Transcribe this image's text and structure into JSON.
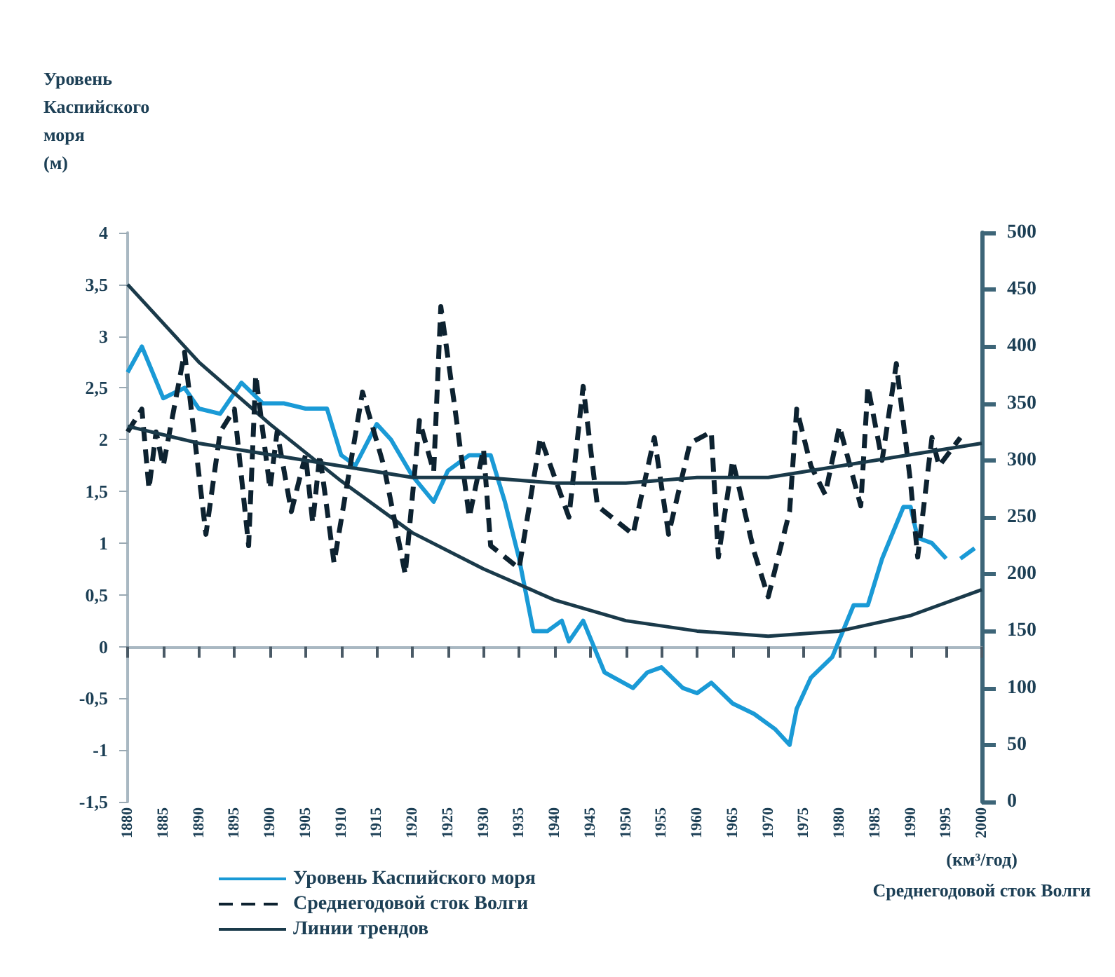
{
  "chart_data": {
    "type": "line",
    "ylabel": "Уровень\nКаспийского\nморя\n(м)",
    "y2label": "(км³/год)\nСреднегодовой сток Волги",
    "xlim": [
      1880,
      2000
    ],
    "xticks": [
      1880,
      1885,
      1890,
      1895,
      1900,
      1905,
      1910,
      1915,
      1920,
      1925,
      1930,
      1935,
      1940,
      1945,
      1950,
      1955,
      1960,
      1965,
      1970,
      1975,
      1980,
      1985,
      1990,
      1995,
      2000
    ],
    "ylim": [
      -1.5,
      4
    ],
    "yticks": [
      {
        "value": -1.5,
        "label": "-1,5"
      },
      -1,
      {
        "value": -0.5,
        "label": "-0,5"
      },
      0,
      {
        "value": 0.5,
        "label": "0,5"
      },
      1,
      {
        "value": 1.5,
        "label": "1,5"
      },
      2,
      {
        "value": 2.5,
        "label": "2,5"
      },
      3,
      {
        "value": 3.5,
        "label": "3,5"
      },
      4
    ],
    "y2lim": [
      0,
      500
    ],
    "y2ticks": [
      0,
      50,
      100,
      150,
      200,
      250,
      300,
      350,
      400,
      450,
      500
    ],
    "legend": "bottom left",
    "marker": "none",
    "series": [
      {
        "name": "Уровень Каспийского моря",
        "color": "#1a9ad6",
        "line_style": "solid",
        "x": [
          1880,
          1882,
          1885,
          1888,
          1890,
          1893,
          1896,
          1899,
          1902,
          1905,
          1908,
          1910,
          1912,
          1915,
          1917,
          1920,
          1923,
          1925,
          1928,
          1931,
          1933,
          1935,
          1937,
          1939,
          1941,
          1942,
          1944,
          1947,
          1951,
          1953,
          1955,
          1958,
          1960,
          1962,
          1965,
          1968,
          1971,
          1973,
          1974,
          1976,
          1979,
          1982,
          1984,
          1986,
          1989,
          1990,
          1991,
          1993,
          1995,
          1996,
          1997,
          1999
        ],
        "values": [
          2.65,
          2.9,
          2.4,
          2.5,
          2.3,
          2.25,
          2.55,
          2.35,
          2.35,
          2.3,
          2.3,
          1.85,
          1.75,
          2.15,
          2,
          1.65,
          1.4,
          1.7,
          1.85,
          1.85,
          1.4,
          0.85,
          0.15,
          0.15,
          0.25,
          0.05,
          0.25,
          -0.25,
          -0.4,
          -0.25,
          -0.2,
          -0.4,
          -0.45,
          -0.35,
          -0.55,
          -0.65,
          -0.8,
          -0.95,
          -0.6,
          -0.3,
          -0.1,
          0.4,
          0.4,
          0.85,
          1.35,
          1.35,
          1.05,
          1,
          0.85,
          null,
          0.85,
          0.95
        ]
      },
      {
        "name": "Среднегодовой сток Волги",
        "color": "#0d2230",
        "line_style": "dashed",
        "axis": "y2",
        "x": [
          1880,
          1882,
          1883,
          1884,
          1885,
          1888,
          1891,
          1893,
          1895,
          1897,
          1898,
          1900,
          1901,
          1903,
          1905,
          1906,
          1907,
          1909,
          1913,
          1916,
          1919,
          1921,
          1923,
          1924,
          1926,
          1928,
          1930,
          1931,
          1935,
          1938,
          1942,
          1944,
          1946,
          1951,
          1954,
          1956,
          1959,
          1962,
          1963,
          1965,
          1968,
          1970,
          1973,
          1974,
          1976,
          1978,
          1980,
          1983,
          1984,
          1986,
          1988,
          1990,
          1991,
          1993,
          1994,
          1997
        ],
        "values": [
          325,
          345,
          275,
          325,
          295,
          395,
          235,
          325,
          345,
          225,
          375,
          275,
          325,
          255,
          305,
          245,
          305,
          210,
          360,
          295,
          200,
          335,
          290,
          435,
          345,
          250,
          310,
          225,
          205,
          320,
          250,
          365,
          260,
          235,
          320,
          235,
          315,
          325,
          215,
          300,
          220,
          180,
          255,
          345,
          295,
          270,
          330,
          260,
          365,
          300,
          385,
          280,
          215,
          320,
          295,
          320
        ]
      },
      {
        "name": "Линии трендов",
        "color": "#1a3a4a",
        "line_style": "solid",
        "x": [
          1880,
          1890,
          1900,
          1910,
          1920,
          1930,
          1940,
          1950,
          1960,
          1970,
          1980,
          1990,
          2000
        ],
        "values": [
          3.5,
          2.75,
          2.15,
          1.6,
          1.1,
          0.75,
          0.45,
          0.25,
          0.15,
          0.1,
          0.15,
          0.3,
          0.55
        ]
      },
      {
        "color": "#1a3a4a",
        "line_style": "solid",
        "axis": "y2",
        "x": [
          1880,
          1890,
          1900,
          1910,
          1920,
          1930,
          1940,
          1950,
          1960,
          1970,
          1980,
          1990,
          2000
        ],
        "values": [
          330,
          315,
          305,
          295,
          285,
          285,
          280,
          280,
          285,
          285,
          295,
          305,
          315
        ]
      }
    ]
  }
}
